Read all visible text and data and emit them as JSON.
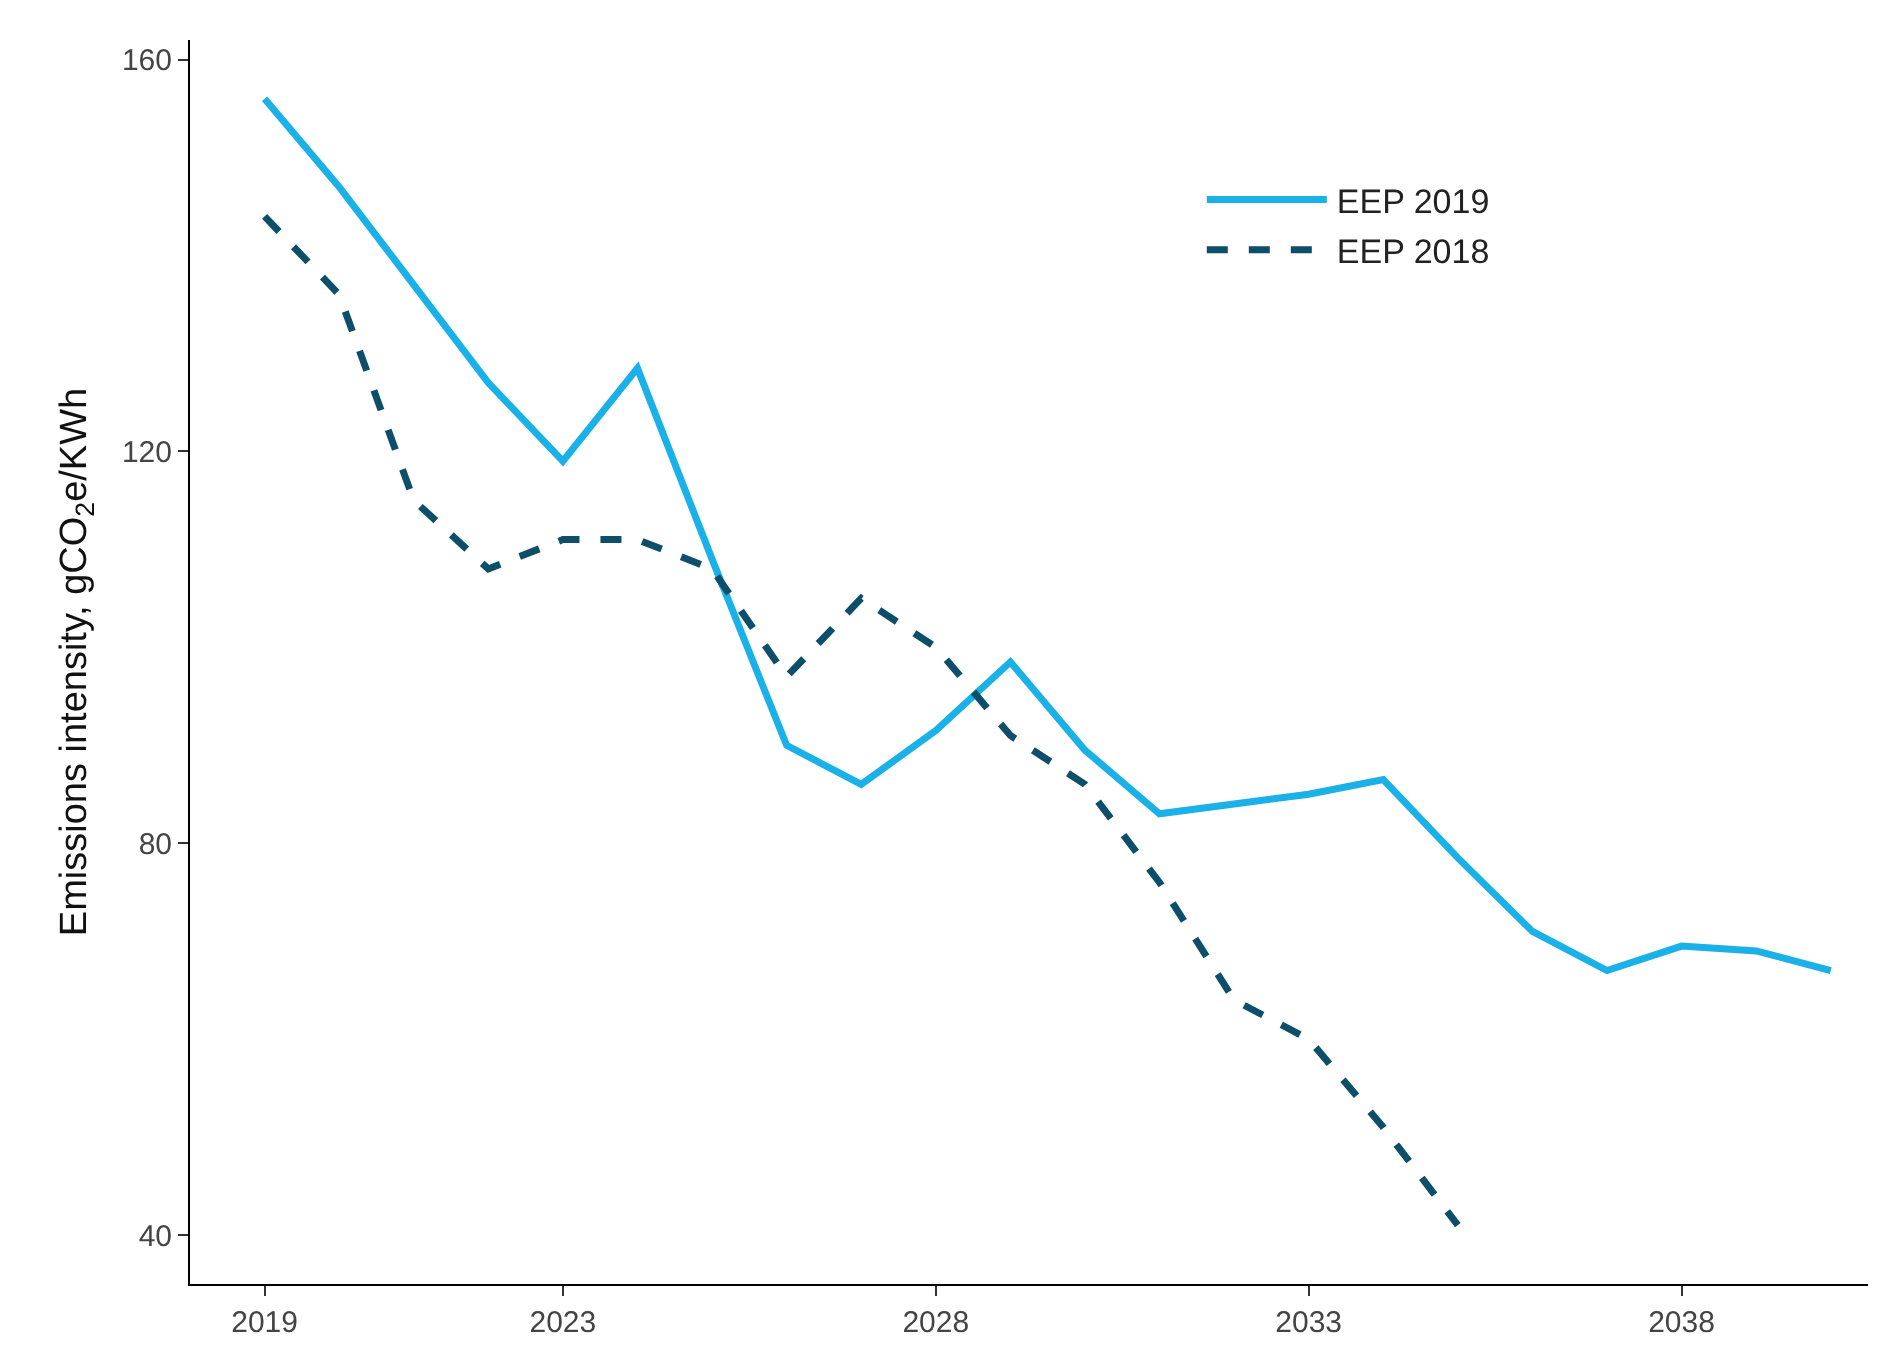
{
  "chart_data": {
    "type": "line",
    "ylabel": "Emissions intensity, gCO$_{2}$e/KWh",
    "x": [
      2019,
      2020,
      2021,
      2022,
      2023,
      2024,
      2025,
      2026,
      2027,
      2028,
      2029,
      2030,
      2031,
      2032,
      2033,
      2034,
      2035,
      2036,
      2037,
      2038,
      2039,
      2040
    ],
    "series": [
      {
        "name": "EEP 2019",
        "color": "#1ab0e8",
        "line_style": "solid",
        "values": [
          156,
          147,
          137,
          127,
          119,
          128.5,
          109,
          90,
          86,
          91.5,
          98.5,
          89.5,
          83,
          84,
          85,
          86.5,
          78.5,
          71,
          67,
          69.5,
          69,
          67
        ]
      },
      {
        "name": "EEP 2018",
        "color": "#0d4f6b",
        "line_style": "dashed",
        "values": [
          144,
          136,
          115,
          108,
          111,
          111,
          108,
          97,
          105,
          100,
          91,
          86,
          76,
          64,
          60,
          51,
          41,
          null,
          null,
          null,
          null,
          null
        ]
      }
    ],
    "xlim": [
      2018,
      2040.5
    ],
    "xticks": [
      2019,
      2023,
      2028,
      2033,
      2038
    ],
    "ylim": [
      35,
      162
    ],
    "yticks": [
      40,
      80,
      120,
      160
    ],
    "grid": false,
    "legend": "top right",
    "marker": "none"
  }
}
